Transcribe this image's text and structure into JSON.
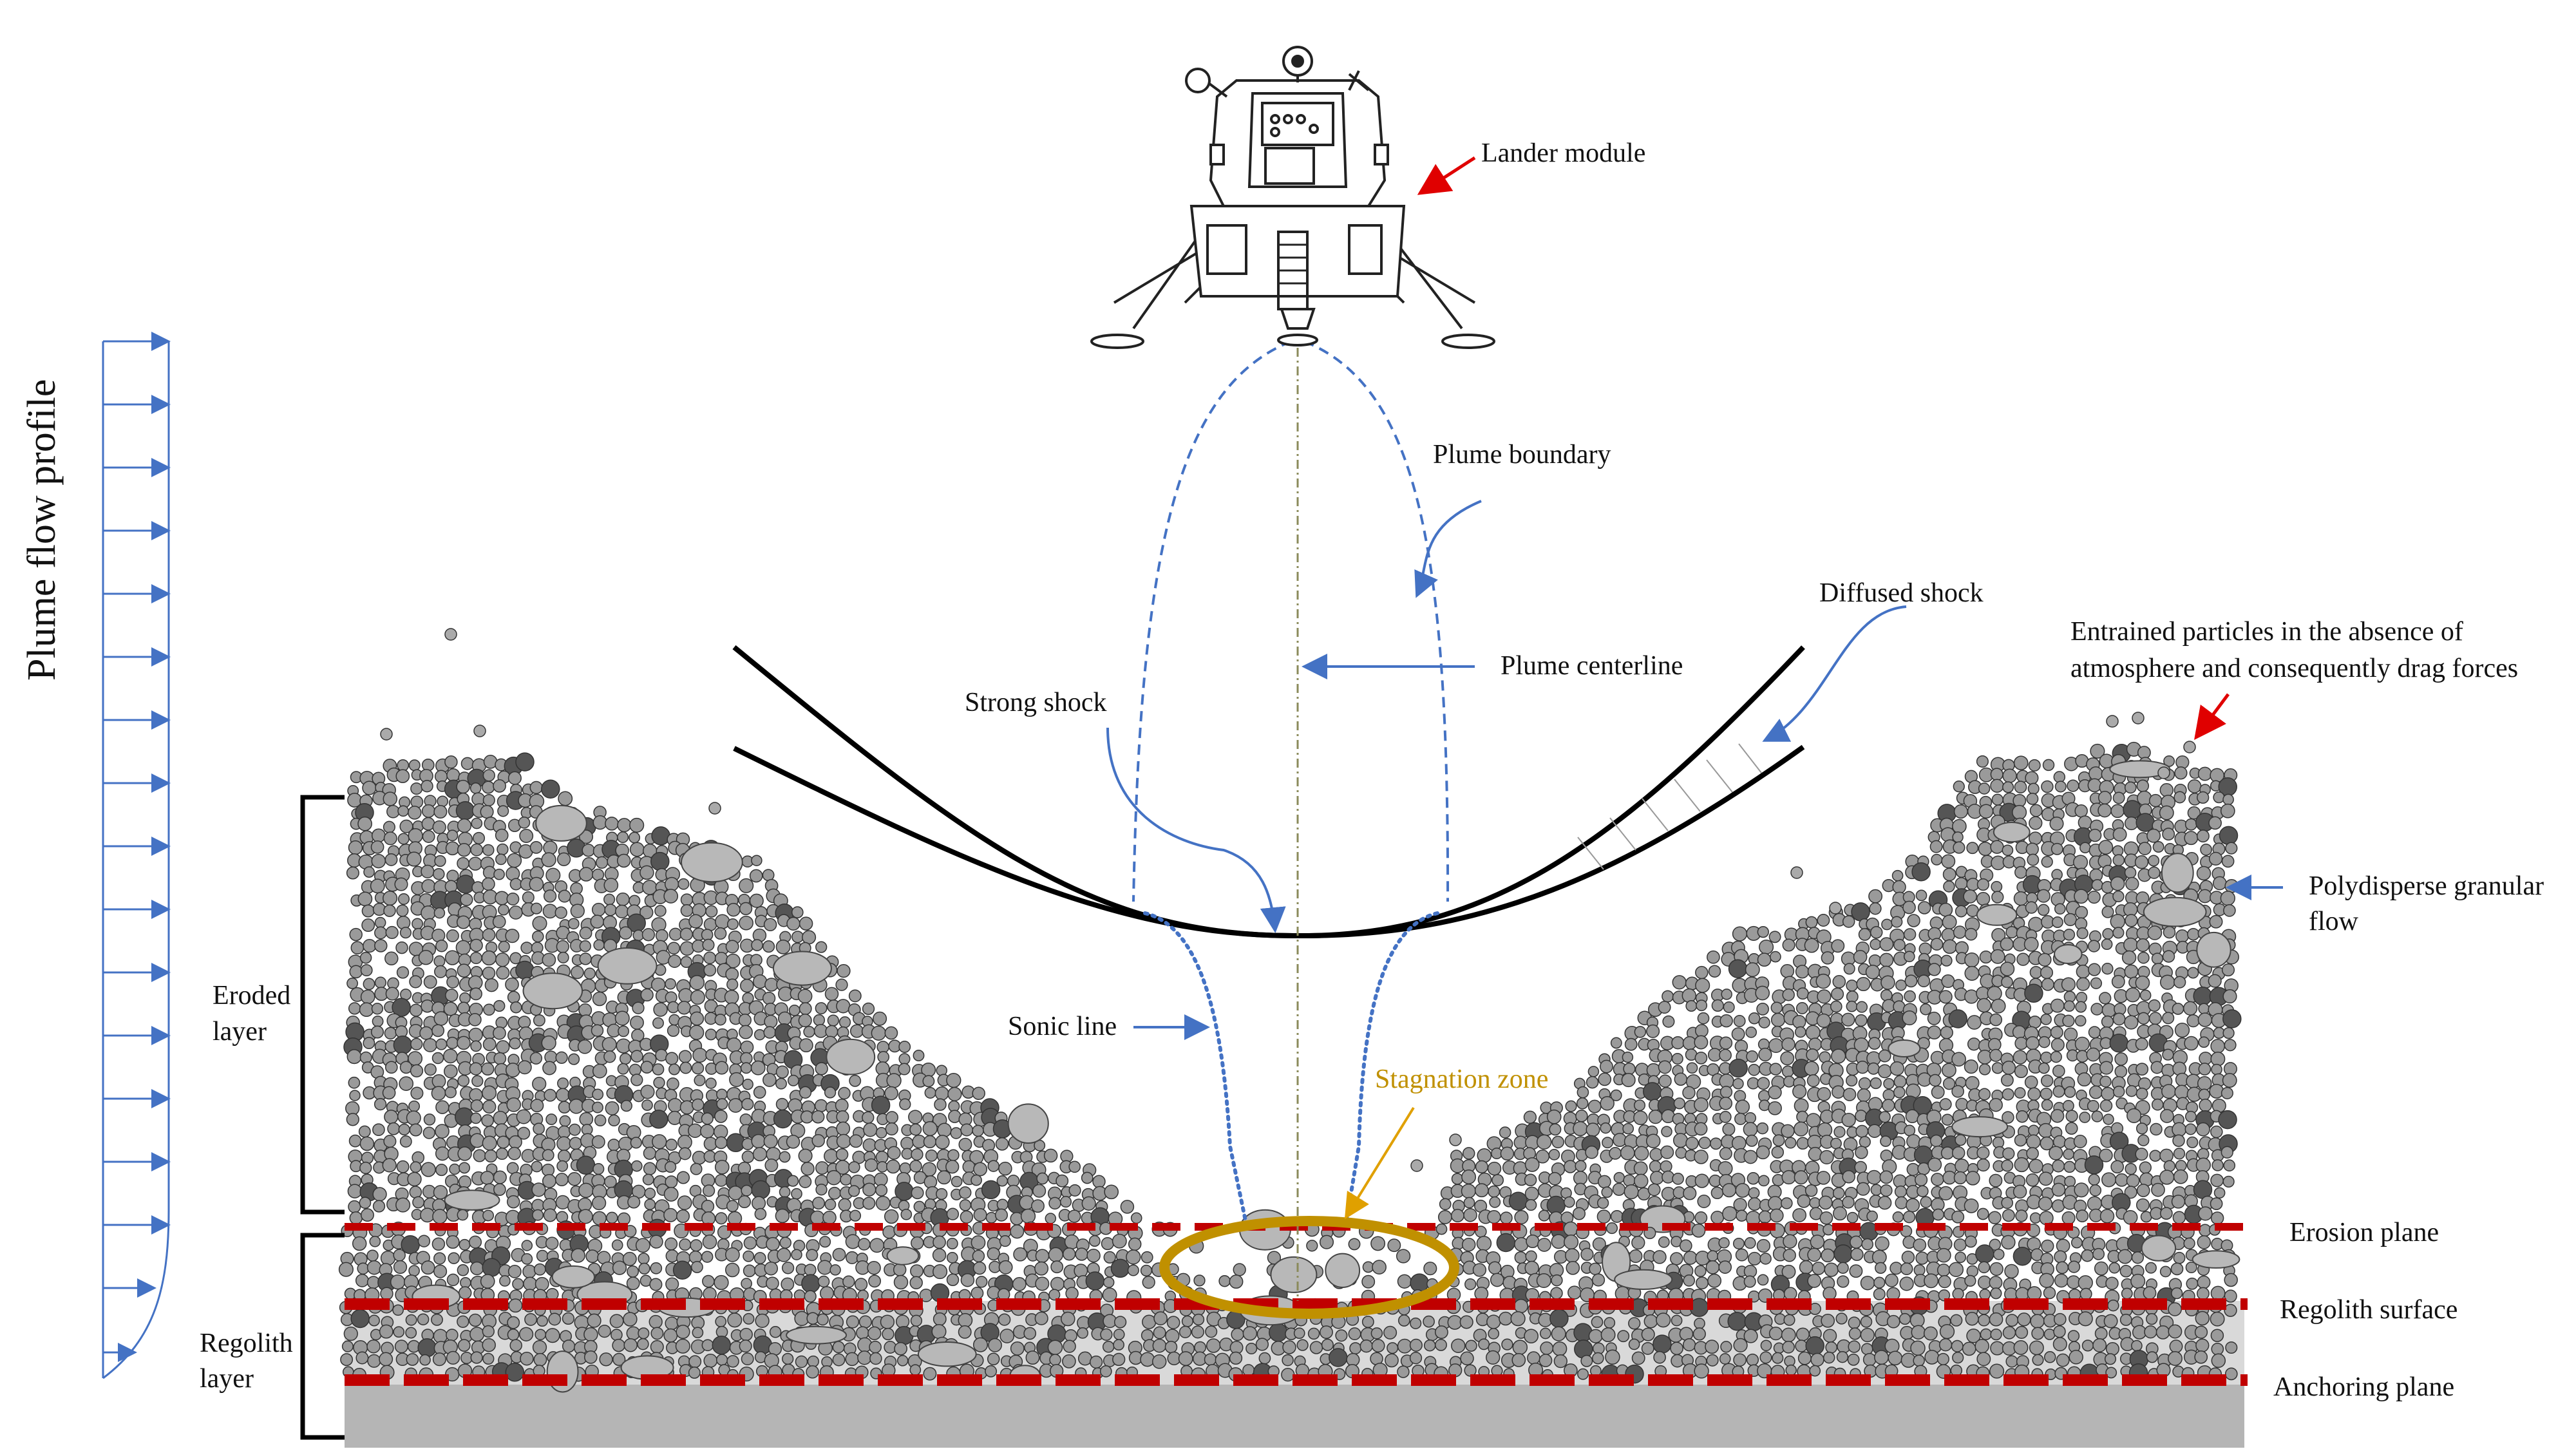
{
  "labels": {
    "plume_flow_profile": "Plume flow profile",
    "lander_module": "Lander module",
    "plume_boundary": "Plume boundary",
    "diffused_shock": "Diffused shock",
    "entrained_particles_line1": "Entrained particles in the absence of",
    "entrained_particles_line2": "atmosphere and consequently drag forces",
    "strong_shock": "Strong shock",
    "plume_centerline": "Plume centerline",
    "polydisperse_line1": "Polydisperse granular",
    "polydisperse_line2": "flow",
    "eroded_line1": "Eroded",
    "eroded_line2": "layer",
    "sonic_line": "Sonic line",
    "stagnation_zone": "Stagnation  zone",
    "erosion_plane": "Erosion plane",
    "regolith_surface": "Regolith surface",
    "anchoring_plane": "Anchoring plane",
    "regolith_line1": "Regolith",
    "regolith_line2": "layer"
  },
  "colors": {
    "flow_arrow": "#4472C4",
    "plume": "#4472C4",
    "shock": "#000000",
    "plane_line": "#C00000",
    "stagnation": "#C09000",
    "stagnation_label": "#C09000",
    "pointer_red": "#E00000",
    "particle_fill": "#9a9a9a",
    "particle_dark": "#555555",
    "bedrock": "#b0b0b0"
  },
  "icons": {
    "lander": "lunar-lander-icon"
  }
}
